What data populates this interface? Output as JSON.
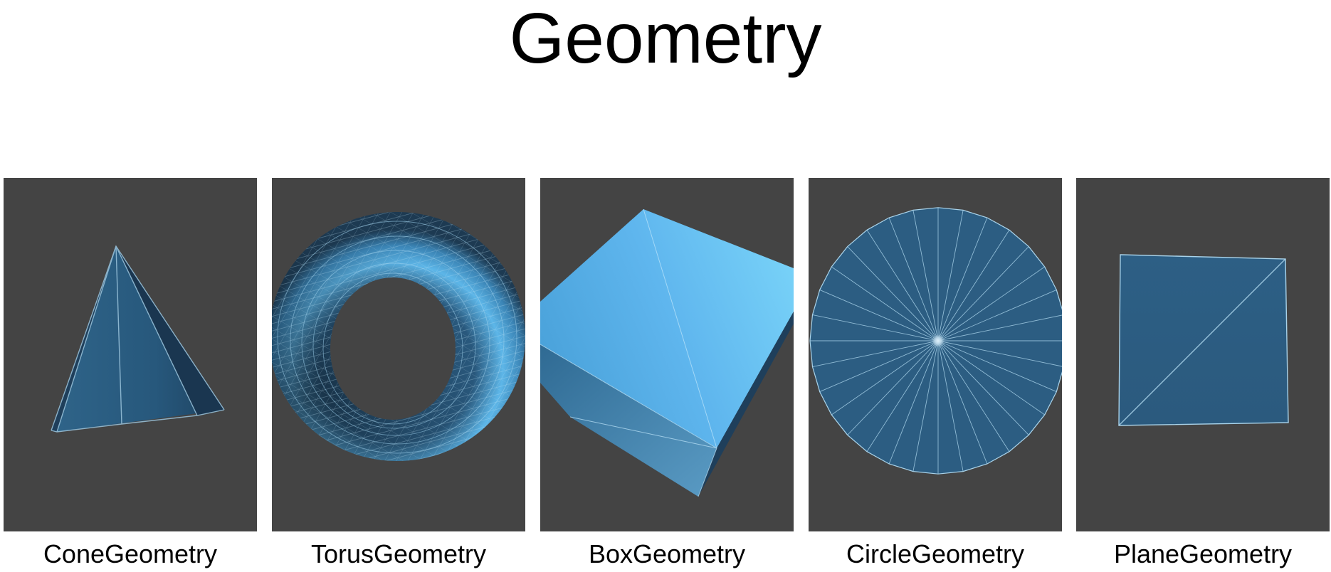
{
  "page": {
    "title": "Geometry"
  },
  "colors": {
    "background": "#ffffff",
    "viewport": "#444444",
    "mesh_dark": "#2c5d82",
    "mesh_light": "#6fc7f5",
    "wire": "#a9d3ea"
  },
  "geometries": [
    {
      "label": "ConeGeometry",
      "shape": "cone"
    },
    {
      "label": "TorusGeometry",
      "shape": "torus"
    },
    {
      "label": "BoxGeometry",
      "shape": "box"
    },
    {
      "label": "CircleGeometry",
      "shape": "circle"
    },
    {
      "label": "PlaneGeometry",
      "shape": "plane"
    }
  ]
}
